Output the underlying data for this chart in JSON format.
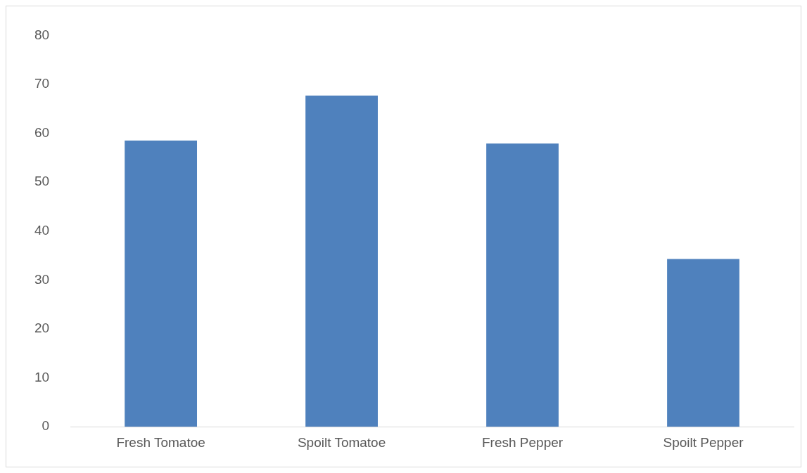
{
  "chart_data": {
    "type": "bar",
    "categories": [
      "Fresh Tomatoe",
      "Spoilt Tomatoe",
      "Fresh Pepper",
      "Spoilt Pepper"
    ],
    "values": [
      58.5,
      67.7,
      57.9,
      34.3
    ],
    "color": "#4f81bd",
    "ylim": [
      0,
      80
    ],
    "yticks": [
      0,
      10,
      20,
      30,
      40,
      50,
      60,
      70,
      80
    ],
    "grid": false,
    "legend": false
  }
}
